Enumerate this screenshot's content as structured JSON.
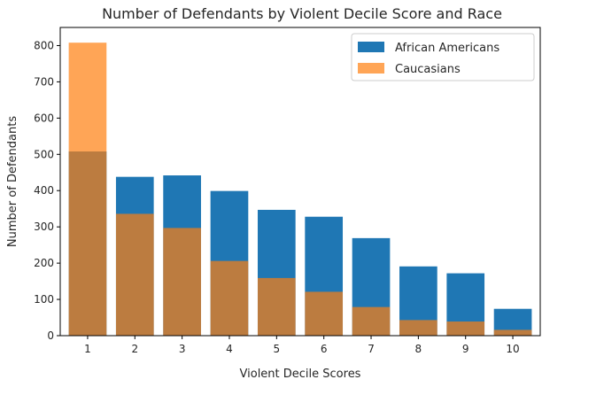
{
  "chart_data": {
    "type": "bar",
    "title": "Number of Defendants by Violent Decile Score and Race",
    "xlabel": "Violent Decile Scores",
    "ylabel": "Number of Defendants",
    "categories": [
      "1",
      "2",
      "3",
      "4",
      "5",
      "6",
      "7",
      "8",
      "9",
      "10"
    ],
    "yticks": [
      0,
      100,
      200,
      300,
      400,
      500,
      600,
      700,
      800
    ],
    "ylim": [
      0,
      850
    ],
    "legend_position": "top-right",
    "grid": false,
    "series": [
      {
        "name": "African Americans",
        "color": "#1f77b4",
        "values": [
          508,
          438,
          442,
          399,
          347,
          328,
          269,
          191,
          172,
          74
        ]
      },
      {
        "name": "Caucasians",
        "color": "#ff7f0e",
        "opacity": 0.7,
        "values": [
          808,
          336,
          297,
          206,
          159,
          121,
          79,
          43,
          39,
          16
        ]
      }
    ]
  }
}
